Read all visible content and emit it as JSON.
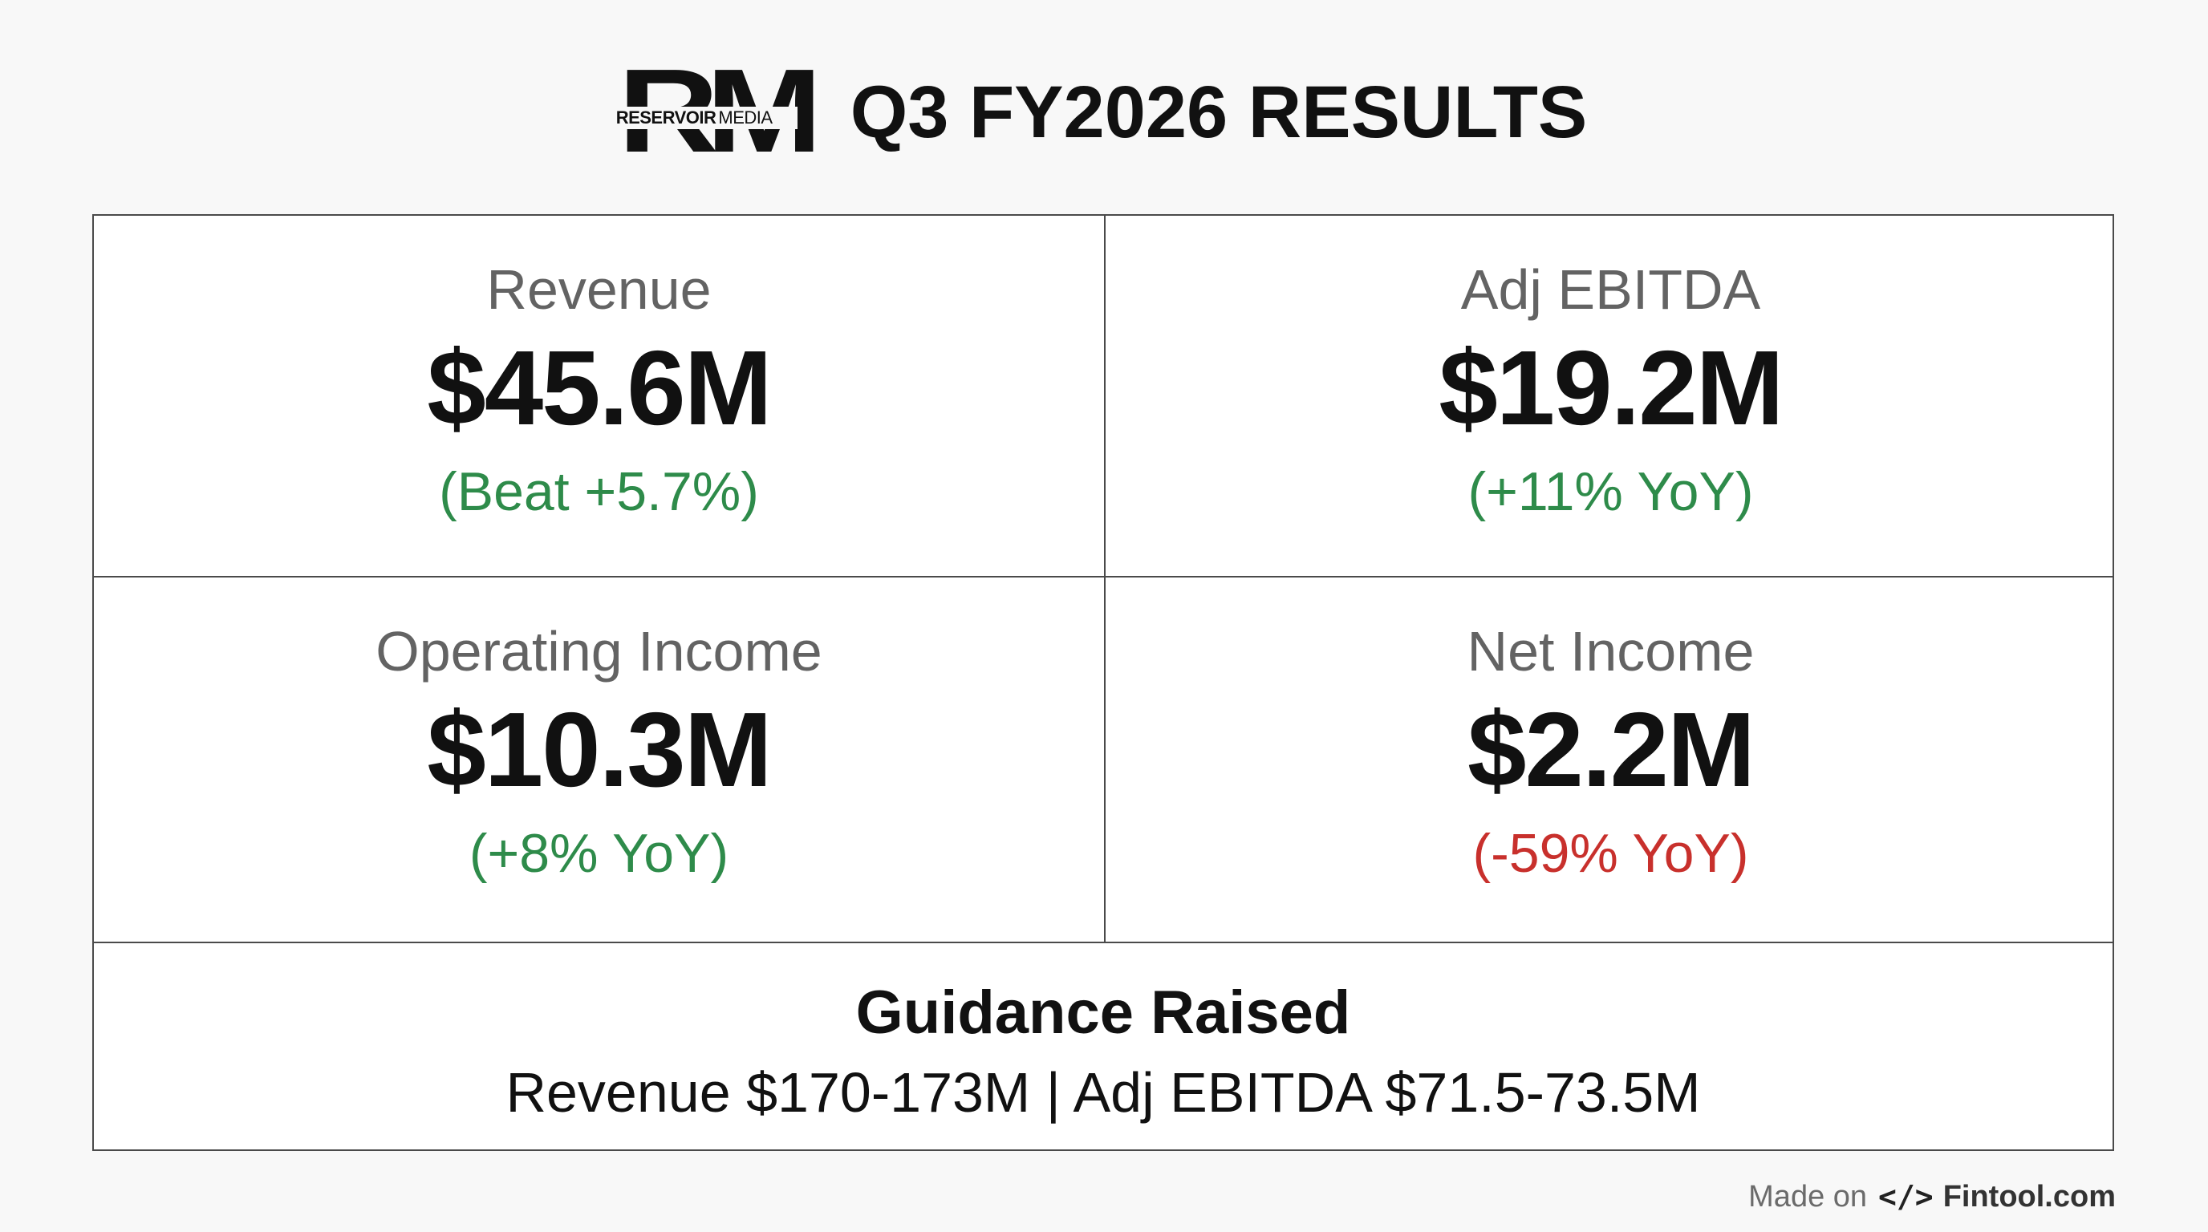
{
  "header": {
    "logo": {
      "letters": "RM",
      "word1": "RESERVOIR",
      "word2": "MEDIA"
    },
    "title": "Q3 FY2026 RESULTS"
  },
  "metrics": [
    {
      "label": "Revenue",
      "value": "$45.6M",
      "change": "(Beat +5.7%)",
      "trend": "positive"
    },
    {
      "label": "Adj EBITDA",
      "value": "$19.2M",
      "change": "(+11% YoY)",
      "trend": "positive"
    },
    {
      "label": "Operating Income",
      "value": "$10.3M",
      "change": "(+8% YoY)",
      "trend": "positive"
    },
    {
      "label": "Net Income",
      "value": "$2.2M",
      "change": "(-59% YoY)",
      "trend": "negative"
    }
  ],
  "guidance": {
    "title": "Guidance Raised",
    "detail": "Revenue $170-173M | Adj EBITDA $71.5-73.5M"
  },
  "footer": {
    "made_on": "Made on",
    "icon": "</>",
    "brand": "Fintool.com"
  },
  "colors": {
    "positive": "#2e8b4a",
    "negative": "#c8302c",
    "label": "#636363",
    "border": "#4a4a4a"
  }
}
